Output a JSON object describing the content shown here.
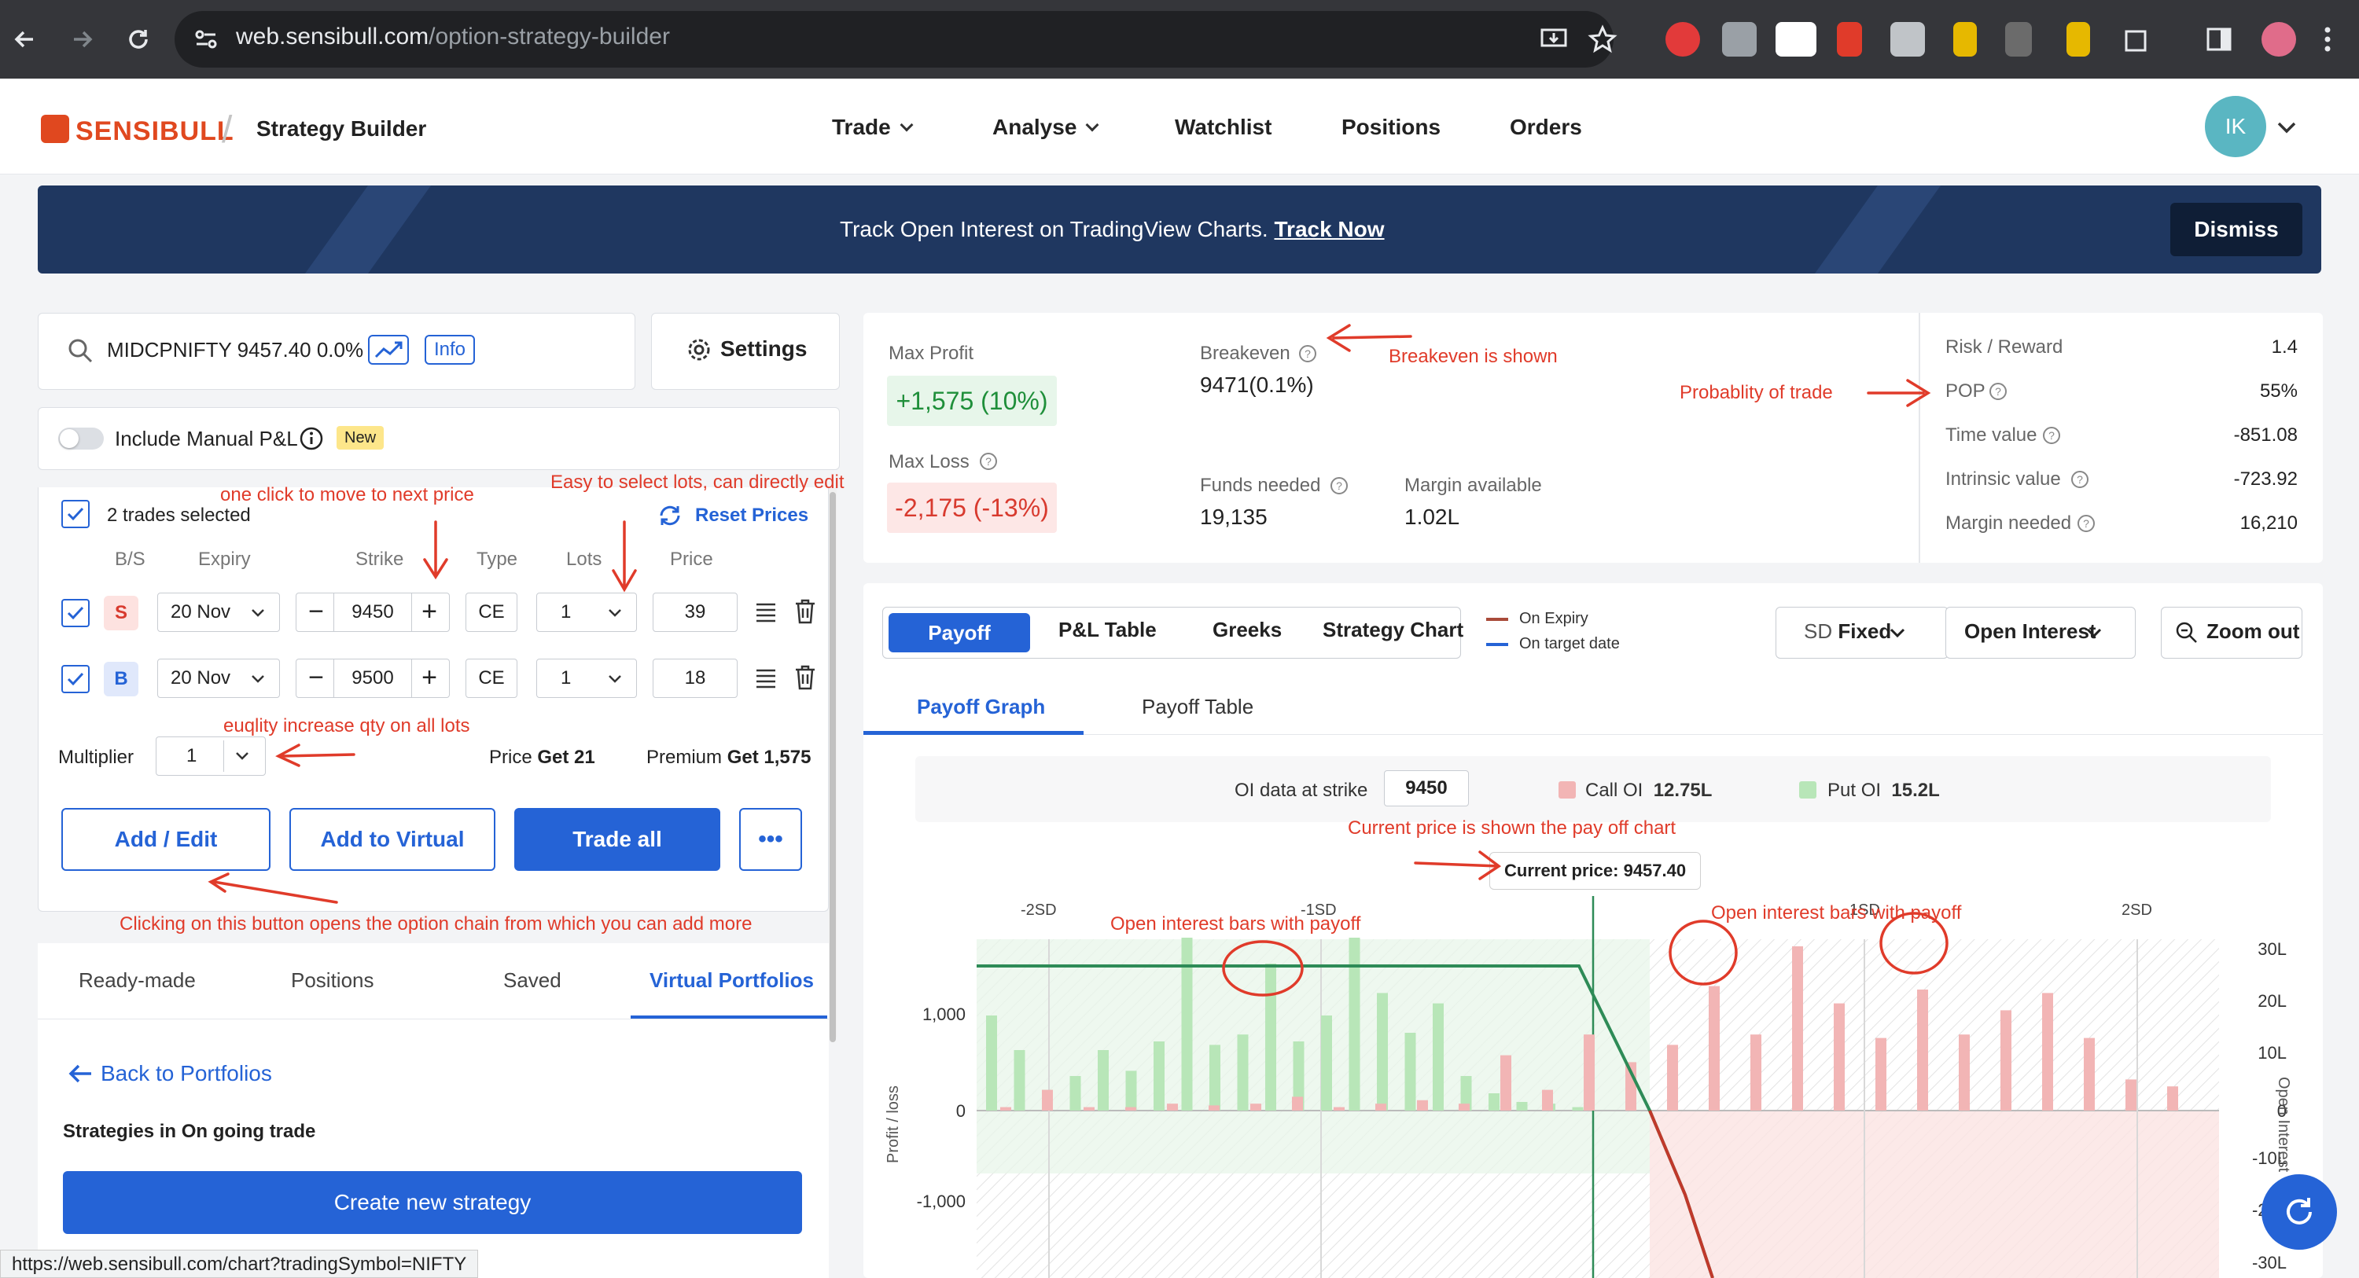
{
  "browser": {
    "url_host": "web.sensibull.com",
    "url_path": "/option-strategy-builder",
    "status_link": "https://web.sensibull.com/chart?tradingSymbol=NIFTY"
  },
  "header": {
    "logo": "SENSIBULL",
    "page_name": "Strategy Builder",
    "nav": [
      "Trade",
      "Analyse",
      "Watchlist",
      "Positions",
      "Orders"
    ],
    "avatar": "IK"
  },
  "banner": {
    "text": "Track Open Interest on TradingView Charts.",
    "link": "Track Now",
    "dismiss": "Dismiss"
  },
  "search": {
    "text": "MIDCPNIFTY 9457.40 0.0%",
    "info": "Info",
    "settings": "Settings"
  },
  "manual": {
    "label": "Include Manual P&L",
    "badge": "New"
  },
  "trades": {
    "selected": "2 trades selected",
    "reset": "Reset Prices",
    "columns": [
      "B/S",
      "Expiry",
      "Strike",
      "Type",
      "Lots",
      "Price"
    ],
    "rows": [
      {
        "bs": "S",
        "expiry": "20 Nov",
        "strike": "9450",
        "type": "CE",
        "lots": "1",
        "price": "39"
      },
      {
        "bs": "B",
        "expiry": "20 Nov",
        "strike": "9500",
        "type": "CE",
        "lots": "1",
        "price": "18"
      }
    ],
    "multiplier_label": "Multiplier",
    "multiplier": "1",
    "price_label": "Price",
    "price_value": "Get 21",
    "premium_label": "Premium",
    "premium_value": "Get 1,575",
    "buttons": [
      "Add / Edit",
      "Add to Virtual",
      "Trade all",
      "•••"
    ]
  },
  "left_tabs": [
    "Ready-made",
    "Positions",
    "Saved",
    "Virtual Portfolios"
  ],
  "portfolio": {
    "back": "Back to Portfolios",
    "heading": "Strategies in On going trade",
    "create": "Create new strategy"
  },
  "annotations": {
    "next_price": "one click to move to next price",
    "lots": "Easy to select lots, can directly edit",
    "multiplier": "euqlity increase qty on all lots",
    "add_edit": "Clicking on this button opens the option chain from which you can add more",
    "breakeven": "Breakeven is shown",
    "pop": "Probablity of trade",
    "current_price": "Current price is shown the pay off chart",
    "oi_left": "Open interest  bars with payoff",
    "oi_right": "Open interest  bars with payoff"
  },
  "metrics": {
    "max_profit_label": "Max Profit",
    "max_profit": "+1,575 (10%)",
    "max_loss_label": "Max Loss",
    "max_loss": "-2,175 (-13%)",
    "breakeven_label": "Breakeven",
    "breakeven": "9471(0.1%)",
    "funds_label": "Funds needed",
    "funds": "19,135",
    "margin_avail_label": "Margin available",
    "margin_avail": "1.02L",
    "right": [
      {
        "label": "Risk / Reward",
        "value": "1.4"
      },
      {
        "label": "POP",
        "value": "55%"
      },
      {
        "label": "Time value",
        "value": "-851.08"
      },
      {
        "label": "Intrinsic value",
        "value": "-723.92"
      },
      {
        "label": "Margin needed",
        "value": "16,210"
      }
    ]
  },
  "payoff": {
    "seg": [
      "Payoff",
      "P&L Table",
      "Greeks",
      "Strategy Chart"
    ],
    "legend": [
      "On Expiry",
      "On target date"
    ],
    "sd_label": "SD",
    "sd_value": "Fixed",
    "oi_select": "Open Interest",
    "zoom": "Zoom out",
    "graph_tabs": [
      "Payoff Graph",
      "Payoff Table"
    ],
    "oi_strike_label": "OI data at strike",
    "oi_strike": "9450",
    "call_oi_label": "Call OI",
    "call_oi": "12.75L",
    "put_oi_label": "Put OI",
    "put_oi": "15.2L",
    "current_price": "Current price: 9457.40",
    "sd_marks": [
      "-2SD",
      "-1SD",
      "1SD",
      "2SD"
    ],
    "y_left_label": "Profit / loss",
    "y_left_ticks": [
      "1,000",
      "0",
      "-1,000"
    ],
    "y_right_label": "Open Interest",
    "y_right_ticks": [
      "30L",
      "20L",
      "10L",
      "0",
      "-10L",
      "-20L",
      "-30L"
    ],
    "colors": {
      "profit": "#2e8b57",
      "loss": "#d8473a",
      "put_oi": "#b8e6b8",
      "call_oi": "#f2b5b5"
    }
  }
}
